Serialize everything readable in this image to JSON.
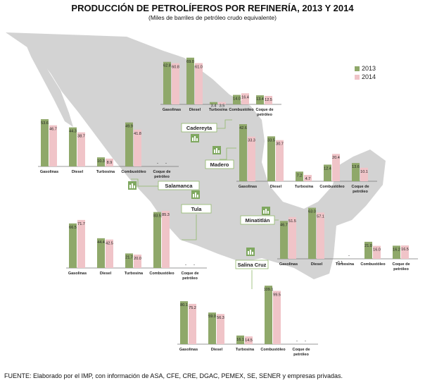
{
  "title": "PRODUCCIÓN DE PETROLÍFEROS POR REFINERÍA, 2013 Y 2014",
  "subtitle": "(Miles de barriles de petróleo crudo equivalente)",
  "source": "FUENTE: Elaborado por el IMP, con información de ASA, CFE, CRE, DGAC, PEMEX, SE, SENER y empresas privadas.",
  "legend": [
    {
      "label": "2013",
      "color": "#8fa86a"
    },
    {
      "label": "2014",
      "color": "#f0c4c8"
    }
  ],
  "colors": {
    "map": "#d3d3d3",
    "bar2013": "#8fa86a",
    "bar2014": "#f0c4c8",
    "connector": "#8fb86a",
    "labelBorder": "#8fb86a",
    "iconBg": "#7fa860"
  },
  "chart_data": [
    {
      "type": "bar",
      "refinery": "Cadereyta",
      "categories": [
        "Gasolinas",
        "Diesel",
        "Turbosina",
        "Combustóleo",
        "Coque de petróleo"
      ],
      "series": [
        {
          "name": "2013",
          "values": [
            62.8,
            69.0,
            3.4,
            14.0,
            13.4
          ]
        },
        {
          "name": "2014",
          "values": [
            60.8,
            61.0,
            3.5,
            16.4,
            12.5
          ]
        }
      ]
    },
    {
      "type": "bar",
      "refinery": "Salamanca",
      "categories": [
        "Gasolinas",
        "Diesel",
        "Turbosina",
        "Combustóleo",
        "Coque de petróleo"
      ],
      "series": [
        {
          "name": "2013",
          "values": [
            53.6,
            44.3,
            10.3,
            49.9,
            null
          ]
        },
        {
          "name": "2014",
          "values": [
            46.7,
            38.7,
            8.9,
            41.8,
            null
          ]
        }
      ]
    },
    {
      "type": "bar",
      "refinery": "Madero",
      "categories": [
        "Gasolinas",
        "Diesel",
        "Turbosina",
        "Combustóleo",
        "Coque de petróleo"
      ],
      "series": [
        {
          "name": "2013",
          "values": [
            42.6,
            33.5,
            7.2,
            12.4,
            13.6
          ]
        },
        {
          "name": "2014",
          "values": [
            33.3,
            30.7,
            4.7,
            20.4,
            10.1
          ]
        }
      ]
    },
    {
      "type": "bar",
      "refinery": "Tula",
      "categories": [
        "Gasolinas",
        "Diesel",
        "Turbosina",
        "Combustóleo",
        "Coque de petróleo"
      ],
      "series": [
        {
          "name": "2013",
          "values": [
            66.5,
            44.4,
            21.7,
            83.5,
            null
          ]
        },
        {
          "name": "2014",
          "values": [
            71.7,
            42.5,
            20.0,
            85.3,
            null
          ]
        }
      ]
    },
    {
      "type": "bar",
      "refinery": "Minatitlán",
      "categories": [
        "Gasolinas",
        "Diesel",
        "Turbosina",
        "Combustóleo",
        "Coque de petróleo"
      ],
      "series": [
        {
          "name": "2013",
          "values": [
            46.7,
            63.0,
            0.1,
            21.0,
            16.2
          ]
        },
        {
          "name": "2014",
          "values": [
            51.5,
            57.1,
            null,
            16.0,
            16.5
          ]
        }
      ]
    },
    {
      "type": "bar",
      "refinery": "Salina Cruz",
      "categories": [
        "Gasolinas",
        "Diesel",
        "Turbosina",
        "Combustóleo",
        "Coque de petróleo"
      ],
      "series": [
        {
          "name": "2013",
          "values": [
            80.1,
            59.0,
            16.1,
            109.1,
            null
          ]
        },
        {
          "name": "2014",
          "values": [
            75.2,
            56.3,
            14.5,
            99.5,
            null
          ]
        }
      ]
    }
  ]
}
